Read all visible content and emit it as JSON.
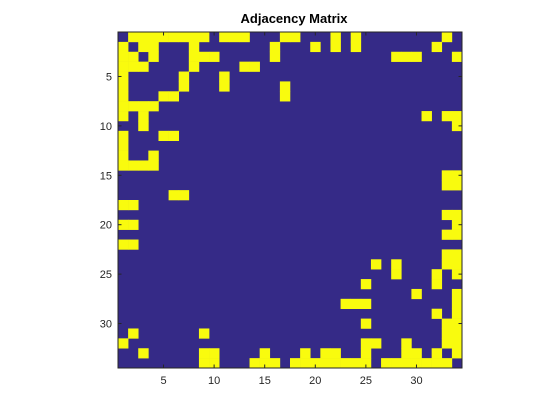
{
  "chart_data": {
    "type": "heatmap",
    "title": "Adjacency Matrix",
    "xlabel": "",
    "ylabel": "",
    "n": 34,
    "xlim": [
      0.5,
      34.5
    ],
    "ylim": [
      0.5,
      34.5
    ],
    "y_direction": "reversed",
    "xticks": [
      5,
      10,
      15,
      20,
      25,
      30
    ],
    "yticks": [
      5,
      10,
      15,
      20,
      25,
      30
    ],
    "colors": {
      "zero": "#352a87",
      "one": "#f9fb0e"
    },
    "matrix": [
      "0111111110111000110001010000000010",
      "1011000100000001000101010000000100",
      "1101000111000001000000000001110001",
      "1110000100001100000000000000000000",
      "1000001000100000000000000000000000",
      "1000001000100000100000000000000000",
      "1000110000000000100000000000000000",
      "1111000000000000000000000000000000",
      "1010000000000000000000000000001011",
      "0010000000000000000000000000000001",
      "1000110000000000000000000000000000",
      "1000000000000000000000000000000000",
      "1001000000000000000000000000000000",
      "1111000000000000000000000000000000",
      "0000000000000000000000000000000011",
      "0000000000000000000000000000000011",
      "0000011000000000000000000000000000",
      "1100000000000000000000000000000000",
      "0000000000000000000000000000000011",
      "1100000000000000000000000000000001",
      "0000000000000000000000000000000011",
      "1100000000000000000000000000000000",
      "0000000000000000000000000000000011",
      "0000000000000000000000000101000011",
      "0000000000000000000000000001000101",
      "0000000000000000000000001000000100",
      "0000000000000000000000000000010001",
      "0000000000000000000000111000000001",
      "0000000000000000000000000000000101",
      "0000000000000000000000001000000011",
      "0100000010000000000000000000000011",
      "1000000000000000000000001100100011",
      "0010000011000010001011001000110101",
      "0000000011000111011111111011111110"
    ]
  }
}
